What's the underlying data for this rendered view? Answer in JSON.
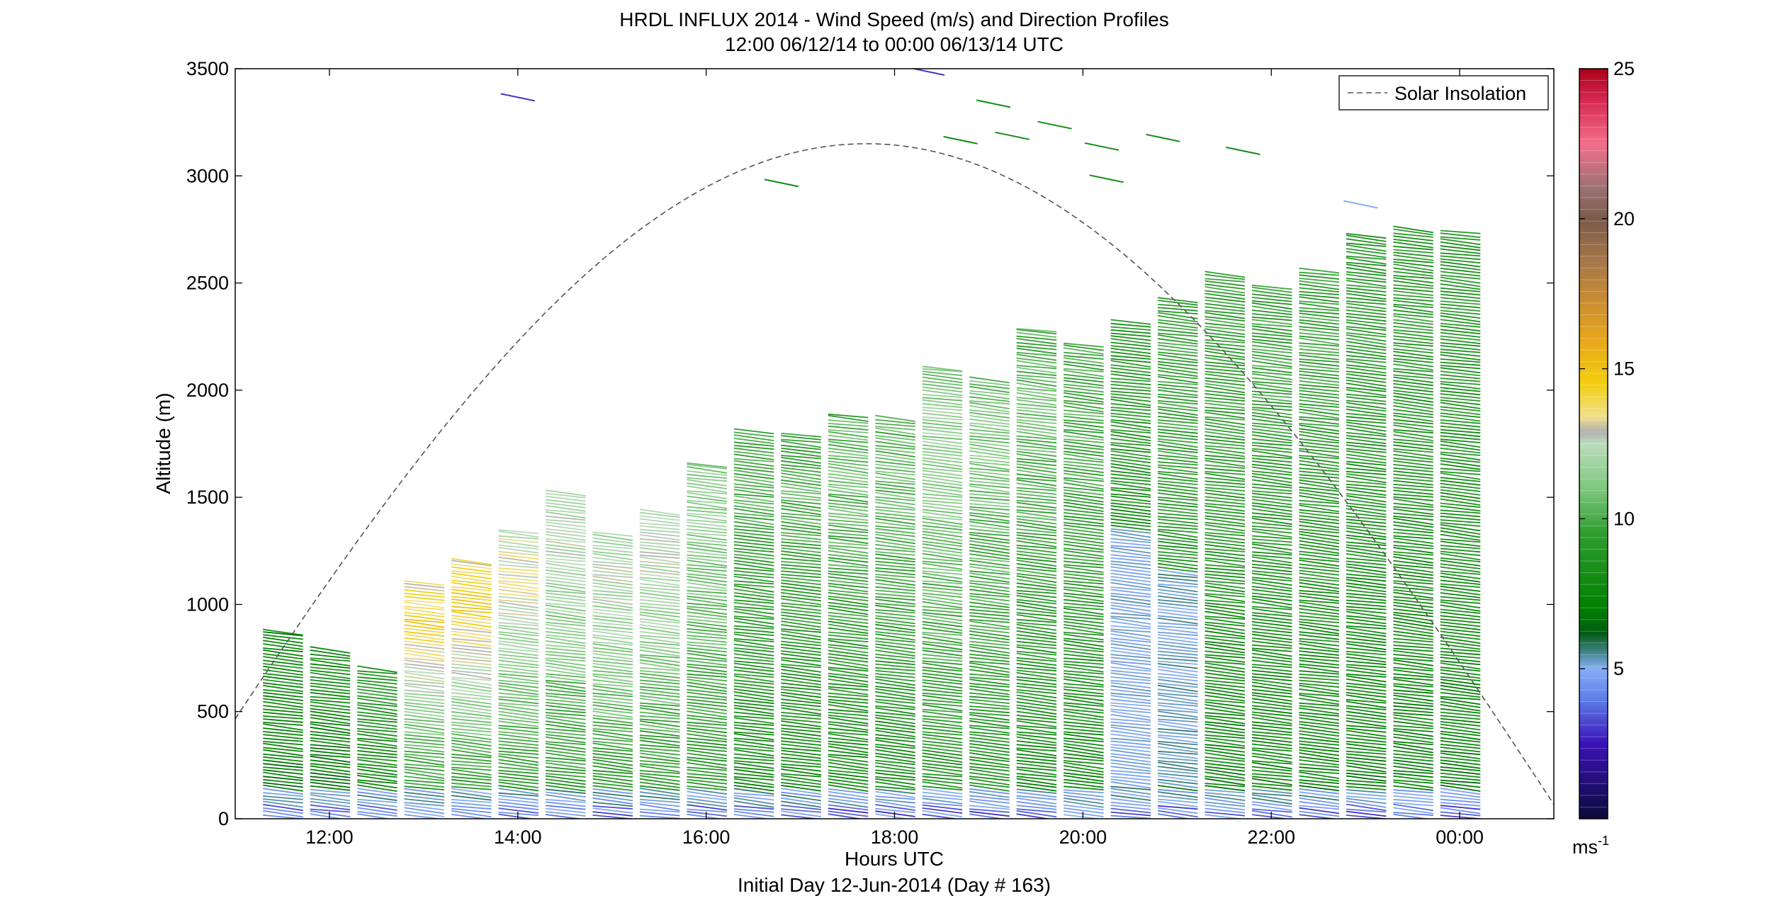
{
  "title_line1": "HRDL INFLUX 2014 - Wind Speed (m/s) and Direction Profiles",
  "title_line2": "12:00 06/12/14 to 00:00 06/13/14  UTC",
  "xlabel": "Hours UTC",
  "xlabel2": "Initial Day 12-Jun-2014 (Day # 163)",
  "ylabel": "Altitude (m)",
  "legend_label": "Solar Insolation",
  "colorbar": {
    "unit": "ms",
    "unit_sup": "-1",
    "min": 0,
    "max": 25,
    "ticks": [
      "5",
      "10",
      "15",
      "20",
      "25"
    ],
    "stops": [
      {
        "v": 0.0,
        "c": "#0b0b3a"
      },
      {
        "v": 2.5,
        "c": "#3a12b8"
      },
      {
        "v": 4.0,
        "c": "#5f7fe8"
      },
      {
        "v": 5.0,
        "c": "#86aef6"
      },
      {
        "v": 5.6,
        "c": "#3d8080"
      },
      {
        "v": 6.2,
        "c": "#005c10"
      },
      {
        "v": 7.0,
        "c": "#008000"
      },
      {
        "v": 9.5,
        "c": "#2f9d2f"
      },
      {
        "v": 11.0,
        "c": "#7ec87e"
      },
      {
        "v": 12.5,
        "c": "#bcdcbc"
      },
      {
        "v": 12.9,
        "c": "#b0b0b0"
      },
      {
        "v": 13.4,
        "c": "#f2e08c"
      },
      {
        "v": 14.5,
        "c": "#f2cf10"
      },
      {
        "v": 16.0,
        "c": "#e8a51c"
      },
      {
        "v": 18.5,
        "c": "#a87848"
      },
      {
        "v": 20.0,
        "c": "#7b5a4a"
      },
      {
        "v": 21.0,
        "c": "#9a7272"
      },
      {
        "v": 22.5,
        "c": "#f46e8a"
      },
      {
        "v": 24.0,
        "c": "#d42650"
      },
      {
        "v": 25.0,
        "c": "#a80018"
      }
    ]
  },
  "chart_data": {
    "type": "scatter",
    "title": "HRDL INFLUX 2014 - Wind Speed (m/s) and Direction Profiles",
    "subtitle": "12:00 06/12/14 to 00:00 06/13/14  UTC",
    "xlabel": "Hours UTC",
    "ylabel": "Altitude (m)",
    "xlim": [
      11.0,
      25.0
    ],
    "ylim": [
      0,
      3500
    ],
    "xticks": [
      12,
      14,
      16,
      18,
      20,
      22,
      24
    ],
    "xtick_labels": [
      "12:00",
      "14:00",
      "16:00",
      "18:00",
      "20:00",
      "22:00",
      "00:00"
    ],
    "yticks": [
      0,
      500,
      1000,
      1500,
      2000,
      2500,
      3000,
      3500
    ],
    "ytick_labels": [
      "0",
      "500",
      "1000",
      "1500",
      "2000",
      "2500",
      "3000",
      "3500"
    ],
    "grid": false,
    "legend": "top-right",
    "insolation_curve": {
      "name": "Solar Insolation",
      "style": "dashed",
      "color": "#555555",
      "peak_hour": 17.75,
      "peak_altitude": 3150,
      "zero_hours": [
        10.3,
        25.1
      ]
    },
    "profiles": [
      {
        "t": 11.5,
        "top": 870,
        "lo": 6,
        "hi": 8
      },
      {
        "t": 12.0,
        "top": 790,
        "lo": 6,
        "hi": 8
      },
      {
        "t": 12.5,
        "top": 700,
        "lo": 6,
        "hi": 9
      },
      {
        "t": 13.0,
        "top": 1100,
        "lo": 6,
        "hi": 14.5
      },
      {
        "t": 13.5,
        "top": 1200,
        "lo": 6,
        "hi": 14.5
      },
      {
        "t": 14.0,
        "top": 1340,
        "lo": 6,
        "hi": 13.5
      },
      {
        "t": 14.5,
        "top": 1520,
        "lo": 7,
        "hi": 12.5
      },
      {
        "t": 15.0,
        "top": 1330,
        "lo": 7,
        "hi": 12.5
      },
      {
        "t": 15.5,
        "top": 1430,
        "lo": 7,
        "hi": 12.5
      },
      {
        "t": 16.0,
        "top": 1650,
        "lo": 7,
        "hi": 11.5
      },
      {
        "t": 16.5,
        "top": 1810,
        "lo": 6.5,
        "hi": 10
      },
      {
        "t": 17.0,
        "top": 1790,
        "lo": 6.5,
        "hi": 10
      },
      {
        "t": 17.5,
        "top": 1880,
        "lo": 6.5,
        "hi": 10.5
      },
      {
        "t": 18.0,
        "top": 1870,
        "lo": 6.5,
        "hi": 10.5
      },
      {
        "t": 18.5,
        "top": 2100,
        "lo": 7,
        "hi": 11.5
      },
      {
        "t": 19.0,
        "top": 2050,
        "lo": 7,
        "hi": 11
      },
      {
        "t": 19.5,
        "top": 2280,
        "lo": 6.5,
        "hi": 10.5
      },
      {
        "t": 20.0,
        "top": 2210,
        "lo": 6.5,
        "hi": 10
      },
      {
        "t": 20.5,
        "top": 2320,
        "lo": 5,
        "hi": 9
      },
      {
        "t": 21.0,
        "top": 2420,
        "lo": 6.5,
        "hi": 9.5
      },
      {
        "t": 21.5,
        "top": 2540,
        "lo": 6.5,
        "hi": 9.5
      },
      {
        "t": 22.0,
        "top": 2480,
        "lo": 6.5,
        "hi": 9.5
      },
      {
        "t": 22.5,
        "top": 2560,
        "lo": 6.5,
        "hi": 9.5
      },
      {
        "t": 23.0,
        "top": 2720,
        "lo": 6.5,
        "hi": 9
      },
      {
        "t": 23.5,
        "top": 2750,
        "lo": 6.5,
        "hi": 9
      },
      {
        "t": 24.0,
        "top": 2740,
        "lo": 6.5,
        "hi": 9
      }
    ],
    "isolated_barbs": [
      {
        "t": 14.0,
        "alt": 3370,
        "v": 3
      },
      {
        "t": 18.35,
        "alt": 3490,
        "v": 3
      },
      {
        "t": 18.7,
        "alt": 3170,
        "v": 8
      },
      {
        "t": 19.25,
        "alt": 3190,
        "v": 8
      },
      {
        "t": 19.7,
        "alt": 3240,
        "v": 8
      },
      {
        "t": 20.2,
        "alt": 3140,
        "v": 8
      },
      {
        "t": 20.85,
        "alt": 3180,
        "v": 8
      },
      {
        "t": 21.7,
        "alt": 3120,
        "v": 8
      },
      {
        "t": 20.25,
        "alt": 2990,
        "v": 8
      },
      {
        "t": 16.8,
        "alt": 2970,
        "v": 8
      },
      {
        "t": 19.05,
        "alt": 3340,
        "v": 8
      },
      {
        "t": 22.95,
        "alt": 2870,
        "v": 5
      }
    ]
  }
}
